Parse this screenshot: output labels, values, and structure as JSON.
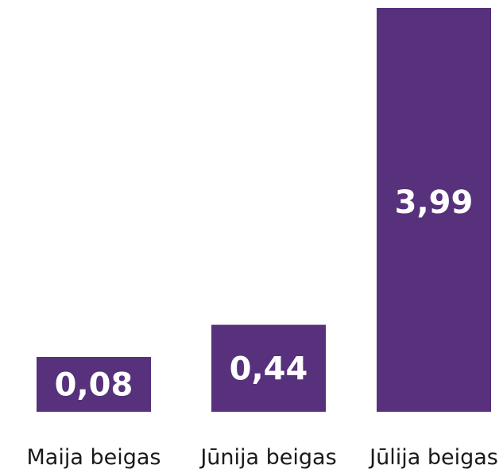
{
  "chart_data": {
    "type": "bar",
    "categories": [
      "Maija beigas",
      "Jūnija beigas",
      "Jūlija beigas"
    ],
    "values": [
      0.08,
      0.44,
      3.99
    ],
    "value_labels": [
      "0,08",
      "0,44",
      "3,99"
    ],
    "color": "#57317c"
  }
}
